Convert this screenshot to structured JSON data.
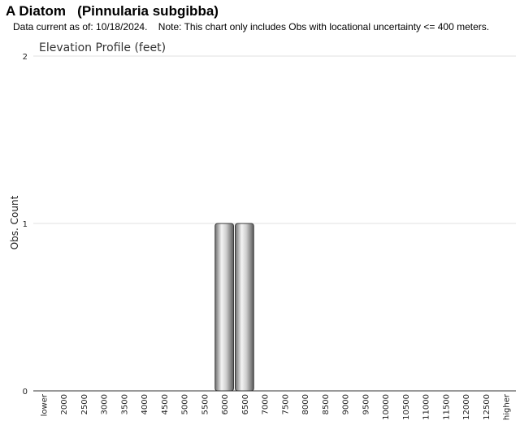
{
  "header": {
    "title": "A Diatom   (Pinnularia subgibba)",
    "note": "Data current as of: 10/18/2024.    Note: This chart only includes Obs with locational uncertainty <= 400 meters."
  },
  "chart_data": {
    "type": "bar",
    "title": "Elevation Profile (feet)",
    "xlabel": "",
    "ylabel": "Obs. Count",
    "ylim": [
      0,
      2
    ],
    "yticks": [
      0,
      1,
      2
    ],
    "grid": true,
    "categories": [
      "lower",
      "2000",
      "2500",
      "3000",
      "3500",
      "4000",
      "4500",
      "5000",
      "5500",
      "6000",
      "6500",
      "7000",
      "7500",
      "8000",
      "8500",
      "9000",
      "9500",
      "10000",
      "10500",
      "11000",
      "11500",
      "12000",
      "12500",
      "higher"
    ],
    "values": [
      0,
      0,
      0,
      0,
      0,
      0,
      0,
      0,
      0,
      1,
      1,
      0,
      0,
      0,
      0,
      0,
      0,
      0,
      0,
      0,
      0,
      0,
      0,
      0
    ],
    "bar_color": "#9a9a9a"
  }
}
